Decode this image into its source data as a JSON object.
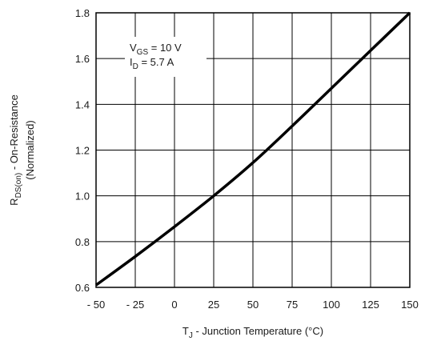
{
  "chart_data": {
    "type": "line",
    "title": "",
    "xlabel": {
      "main": "T",
      "sub": "J",
      "rest": " - Junction Temperature (°C)"
    },
    "ylabel": {
      "line1_main": "R",
      "line1_sub": "DS(on)",
      "line1_rest": " - On-Resistance",
      "line2": "(Normalized)"
    },
    "xlim": [
      -50,
      150
    ],
    "ylim": [
      0.6,
      1.8
    ],
    "x_ticks": [
      -50,
      -25,
      0,
      25,
      50,
      75,
      100,
      125,
      150
    ],
    "x_tick_labels": [
      "- 50",
      "- 25",
      "0",
      "25",
      "50",
      "75",
      "100",
      "125",
      "150"
    ],
    "y_ticks": [
      0.6,
      0.8,
      1.0,
      1.2,
      1.4,
      1.6,
      1.8
    ],
    "y_tick_labels": [
      "0.6",
      "0.8",
      "1.0",
      "1.2",
      "1.4",
      "1.6",
      "1.8"
    ],
    "grid": true,
    "annotation": {
      "line1": {
        "main": "V",
        "sub": "GS",
        "rest": " = 10 V"
      },
      "line2": {
        "main": "I",
        "sub": "D",
        "rest": " = 5.7 A"
      }
    },
    "series": [
      {
        "x": [
          -50,
          -25,
          0,
          25,
          50,
          75,
          100,
          125,
          150
        ],
        "y": [
          0.61,
          0.735,
          0.865,
          1.0,
          1.145,
          1.305,
          1.47,
          1.635,
          1.8
        ]
      }
    ],
    "colors": {
      "line": "#000000",
      "grid": "#000000",
      "frame": "#000000"
    }
  }
}
